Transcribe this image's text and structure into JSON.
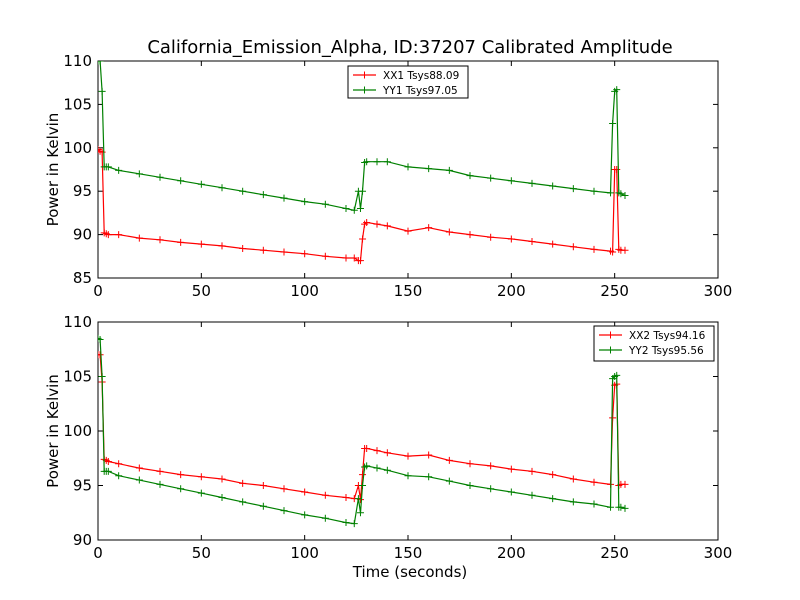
{
  "figure": {
    "title": "California_Emission_Alpha, ID:37207 Calibrated Amplitude",
    "xlabel": "Time (seconds)"
  },
  "chart_data": [
    {
      "type": "line",
      "ylabel": "Power in Kelvin",
      "xlim": [
        0,
        300
      ],
      "ylim": [
        85,
        110
      ],
      "xticks": [
        0,
        50,
        100,
        150,
        200,
        250,
        300
      ],
      "yticks": [
        85,
        90,
        95,
        100,
        105,
        110
      ],
      "xtick_labels": [
        "0",
        "50",
        "100",
        "150",
        "200",
        "250",
        "300"
      ],
      "ytick_labels": [
        "85",
        "90",
        "95",
        "100",
        "105",
        "110"
      ],
      "grid": false,
      "legend": "top-center",
      "series": [
        {
          "name": "XX1 Tsys88.09",
          "color": "#ff0000",
          "marker": "plus",
          "x": [
            0,
            1,
            2,
            3,
            4,
            5,
            10,
            20,
            30,
            40,
            50,
            60,
            70,
            80,
            90,
            100,
            110,
            120,
            124,
            126,
            127,
            128,
            129,
            130,
            135,
            140,
            150,
            160,
            170,
            180,
            190,
            200,
            210,
            220,
            230,
            240,
            248,
            249,
            250,
            251,
            252,
            253,
            255
          ],
          "y": [
            99.8,
            99.6,
            99.5,
            90.2,
            90.1,
            90.0,
            90.0,
            89.6,
            89.4,
            89.1,
            88.9,
            88.7,
            88.4,
            88.2,
            88.0,
            87.8,
            87.5,
            87.3,
            87.3,
            87.0,
            87.0,
            89.5,
            91.2,
            91.4,
            91.2,
            91.0,
            90.4,
            90.8,
            90.3,
            90.0,
            89.7,
            89.5,
            89.2,
            88.9,
            88.6,
            88.3,
            88.1,
            88.0,
            97.5,
            97.5,
            88.3,
            88.2,
            88.2
          ]
        },
        {
          "name": "YY1 Tsys97.05",
          "color": "#008000",
          "marker": "plus",
          "x": [
            0,
            1,
            2,
            3,
            4,
            5,
            10,
            20,
            30,
            40,
            50,
            60,
            70,
            80,
            90,
            100,
            110,
            120,
            124,
            126,
            127,
            128,
            129,
            130,
            135,
            140,
            150,
            160,
            170,
            180,
            190,
            200,
            210,
            220,
            230,
            240,
            248,
            249,
            250,
            251,
            252,
            253,
            255
          ],
          "y": [
            110,
            110,
            106.5,
            97.8,
            97.8,
            97.8,
            97.4,
            97.0,
            96.6,
            96.2,
            95.8,
            95.4,
            95.0,
            94.6,
            94.2,
            93.8,
            93.5,
            93.0,
            92.8,
            95.0,
            93.0,
            95.0,
            98.3,
            98.4,
            98.4,
            98.4,
            97.8,
            97.6,
            97.4,
            96.8,
            96.5,
            96.2,
            95.9,
            95.6,
            95.3,
            95.0,
            94.8,
            102.8,
            106.5,
            106.7,
            94.8,
            94.7,
            94.5
          ]
        }
      ]
    },
    {
      "type": "line",
      "ylabel": "Power in Kelvin",
      "xlabel": "Time (seconds)",
      "xlim": [
        0,
        300
      ],
      "ylim": [
        90,
        110
      ],
      "xticks": [
        0,
        50,
        100,
        150,
        200,
        250,
        300
      ],
      "yticks": [
        90,
        95,
        100,
        105,
        110
      ],
      "xtick_labels": [
        "0",
        "50",
        "100",
        "150",
        "200",
        "250",
        "300"
      ],
      "ytick_labels": [
        "90",
        "95",
        "100",
        "105",
        "110"
      ],
      "grid": false,
      "legend": "top-right",
      "series": [
        {
          "name": "XX2 Tsys94.16",
          "color": "#ff0000",
          "marker": "plus",
          "x": [
            0,
            1,
            2,
            3,
            4,
            5,
            10,
            20,
            30,
            40,
            50,
            60,
            70,
            80,
            90,
            100,
            110,
            120,
            124,
            126,
            127,
            128,
            129,
            130,
            135,
            140,
            150,
            160,
            170,
            180,
            190,
            200,
            210,
            220,
            230,
            240,
            248,
            249,
            250,
            251,
            252,
            253,
            255
          ],
          "y": [
            107.0,
            107.0,
            104.5,
            97.4,
            97.3,
            97.2,
            97.0,
            96.6,
            96.3,
            96.0,
            95.8,
            95.6,
            95.2,
            95.0,
            94.7,
            94.4,
            94.1,
            93.9,
            93.8,
            95.0,
            93.7,
            96.0,
            98.4,
            98.4,
            98.2,
            98.0,
            97.7,
            97.8,
            97.3,
            97.0,
            96.8,
            96.5,
            96.3,
            96.0,
            95.6,
            95.3,
            95.1,
            101.2,
            104.2,
            104.3,
            95.0,
            95.1,
            95.1
          ]
        },
        {
          "name": "YY2 Tsys95.56",
          "color": "#008000",
          "marker": "plus",
          "x": [
            0,
            1,
            2,
            3,
            4,
            5,
            10,
            20,
            30,
            40,
            50,
            60,
            70,
            80,
            90,
            100,
            110,
            120,
            124,
            126,
            127,
            128,
            129,
            130,
            135,
            140,
            150,
            160,
            170,
            180,
            190,
            200,
            210,
            220,
            230,
            240,
            248,
            249,
            250,
            251,
            252,
            253,
            255
          ],
          "y": [
            108.5,
            108.4,
            105.0,
            96.3,
            96.3,
            96.3,
            95.9,
            95.5,
            95.1,
            94.7,
            94.3,
            93.9,
            93.5,
            93.1,
            92.7,
            92.3,
            92.0,
            91.6,
            91.5,
            93.8,
            92.5,
            95.0,
            96.7,
            96.8,
            96.6,
            96.4,
            95.9,
            95.8,
            95.4,
            95.0,
            94.7,
            94.4,
            94.1,
            93.8,
            93.5,
            93.3,
            93.0,
            104.8,
            105.0,
            105.1,
            93.0,
            93.0,
            92.9
          ]
        }
      ]
    }
  ]
}
